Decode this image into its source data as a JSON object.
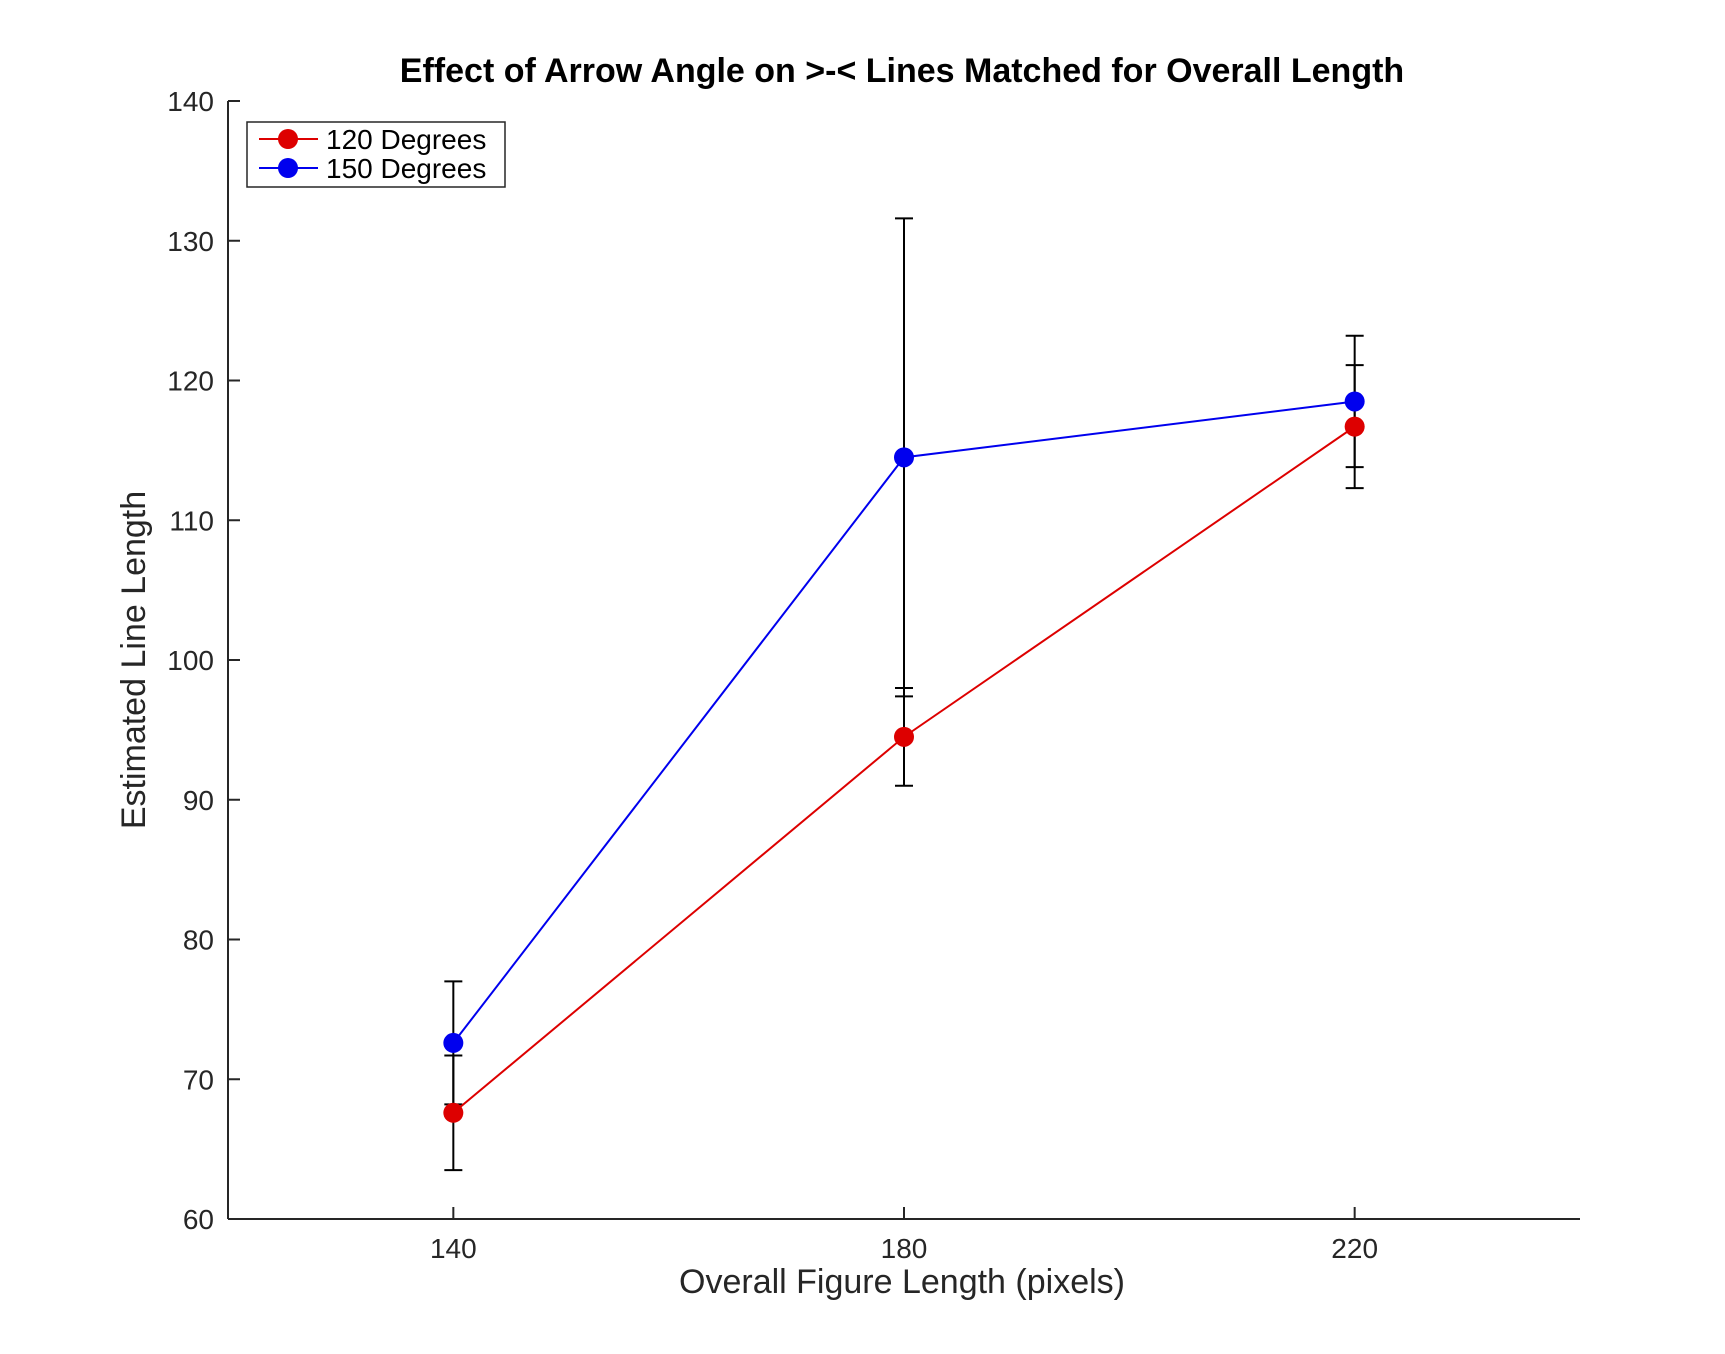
{
  "chart_data": {
    "type": "line",
    "title": "Effect of Arrow Angle on >-< Lines Matched for Overall Length",
    "xlabel": "Overall Figure Length (pixels)",
    "ylabel": "Estimated Line Length",
    "x": [
      140,
      180,
      220
    ],
    "xlim": [
      120,
      240
    ],
    "ylim": [
      60,
      140
    ],
    "xticks": [
      140,
      180,
      220
    ],
    "yticks": [
      60,
      70,
      80,
      90,
      100,
      110,
      120,
      130,
      140
    ],
    "grid": false,
    "legend_position": "top-left",
    "series": [
      {
        "name": "120 Degrees",
        "color": "#dd0000",
        "values": [
          67.6,
          94.5,
          116.7
        ],
        "error": [
          4.1,
          3.5,
          4.4
        ]
      },
      {
        "name": "150 Degrees",
        "color": "#0000ee",
        "values": [
          72.6,
          114.5,
          118.5
        ],
        "error": [
          4.4,
          17.1,
          4.7
        ]
      }
    ]
  }
}
